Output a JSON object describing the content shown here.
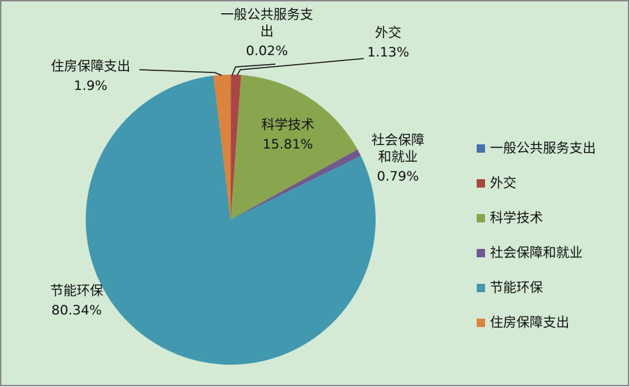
{
  "chart_data": {
    "type": "pie",
    "categories": [
      "一般公共服务支出",
      "外交",
      "科学技术",
      "社会保障和就业",
      "节能环保",
      "住房保障支出"
    ],
    "values": [
      0.02,
      1.13,
      15.81,
      0.79,
      80.34,
      1.9
    ],
    "value_labels": [
      "0.02%",
      "1.13%",
      "15.81%",
      "0.79%",
      "80.34%",
      "1.9%"
    ],
    "colors": [
      "#4572a7",
      "#aa4643",
      "#89a54e",
      "#71588f",
      "#4198af",
      "#db843d"
    ],
    "legend": "right"
  }
}
